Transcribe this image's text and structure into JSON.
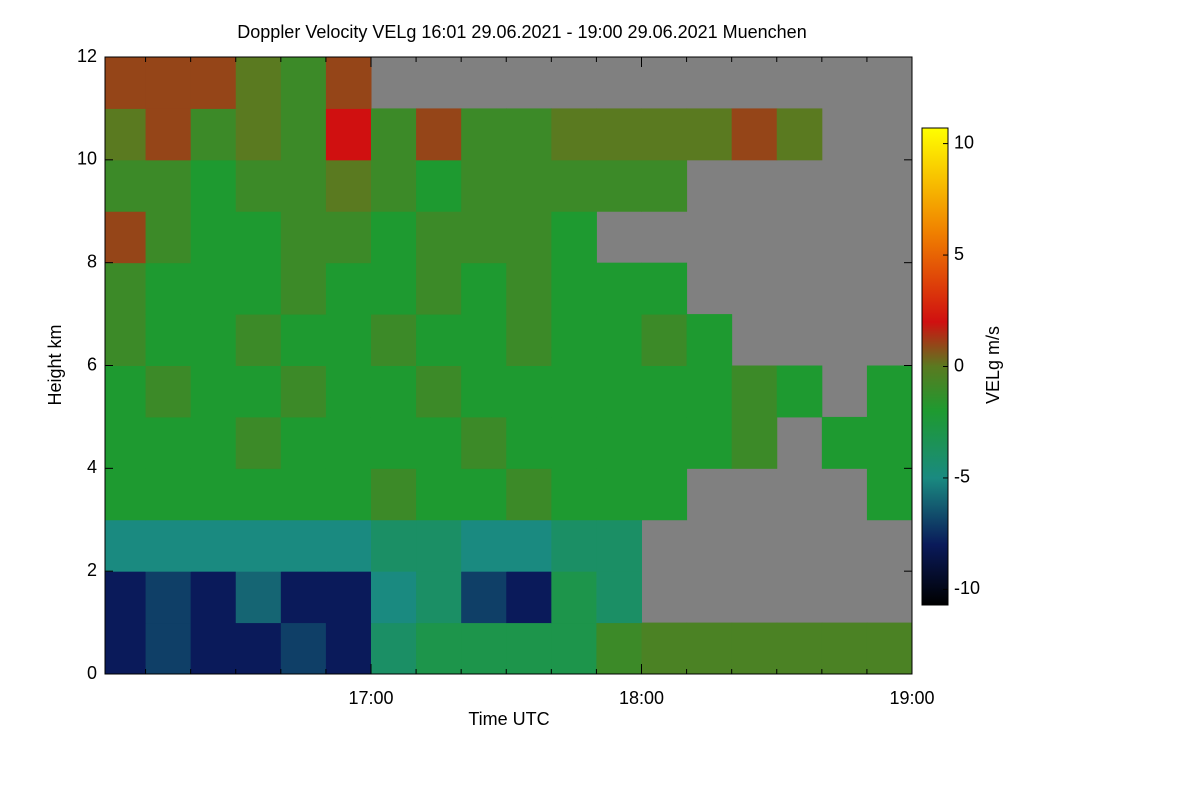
{
  "chart_data": {
    "type": "heatmap",
    "title": "Doppler Velocity VELg   16:01 29.06.2021 - 19:00 29.06.2021 Muenchen",
    "x_label": "Time UTC",
    "y_label": "Height km",
    "colorbar_label": "VELg m/s",
    "xlim": [
      961,
      1140
    ],
    "xticks": [
      {
        "value": 1020,
        "label": "17:00"
      },
      {
        "value": 1080,
        "label": "18:00"
      },
      {
        "value": 1140,
        "label": "19:00"
      }
    ],
    "xminorticks": [
      970,
      980,
      990,
      1000,
      1010,
      1030,
      1040,
      1050,
      1060,
      1070,
      1090,
      1100,
      1110,
      1120,
      1130
    ],
    "ylim": [
      0,
      12
    ],
    "yticks": [
      0,
      2,
      4,
      6,
      8,
      10,
      12
    ],
    "zlim": [
      -10.7,
      10.7
    ],
    "zticks": [
      -10,
      -5,
      0,
      5,
      10
    ],
    "missing_color": "#808080",
    "colormap": [
      {
        "value": -10.7,
        "color": "#000000"
      },
      {
        "value": -8,
        "color": "#0a1a5a"
      },
      {
        "value": -5,
        "color": "#1a8a80"
      },
      {
        "value": -2,
        "color": "#1e9a30"
      },
      {
        "value": 0,
        "color": "#5a7a20"
      },
      {
        "value": 2,
        "color": "#d01010"
      },
      {
        "value": 6,
        "color": "#f08000"
      },
      {
        "value": 10.7,
        "color": "#ffff00"
      }
    ],
    "xbins": [
      961,
      970,
      980,
      990,
      1000,
      1010,
      1020,
      1030,
      1040,
      1050,
      1060,
      1070,
      1080,
      1090,
      1100,
      1110,
      1120,
      1130,
      1140
    ],
    "ybins": [
      0,
      1,
      2,
      3,
      4,
      5,
      6,
      7,
      8,
      9,
      10,
      11,
      12
    ],
    "values": [
      [
        -8,
        -7,
        -8,
        -8,
        -7,
        -8,
        -4,
        -3,
        -3,
        -3,
        -3,
        -1,
        -0.5,
        -0.5,
        -0.5,
        -0.5,
        -0.5,
        -0.5
      ],
      [
        -8,
        -7,
        -8,
        -6,
        -8,
        -8,
        -5,
        -4,
        -7,
        -8,
        -3,
        -4,
        null,
        null,
        null,
        null,
        null,
        null
      ],
      [
        -5,
        -5,
        -5,
        -5,
        -5,
        -5,
        -4,
        -4,
        -5,
        -5,
        -4,
        -4,
        null,
        null,
        null,
        null,
        null,
        null
      ],
      [
        -2,
        -2,
        -2,
        -2,
        -2,
        -2,
        -1,
        -2,
        -2,
        -1,
        -2,
        -2,
        -2,
        null,
        null,
        null,
        null,
        -2
      ],
      [
        -2,
        -2,
        -2,
        -1,
        -2,
        -2,
        -2,
        -2,
        -1,
        -2,
        -2,
        -2,
        -2,
        -2,
        -1,
        null,
        -2,
        -2
      ],
      [
        -2,
        -1,
        -2,
        -2,
        -1,
        -2,
        -2,
        -1,
        -2,
        -2,
        -2,
        -2,
        -2,
        -2,
        -1,
        -2,
        null,
        -2
      ],
      [
        -1,
        -2,
        -2,
        -1,
        -2,
        -2,
        -1,
        -2,
        -2,
        -1,
        -2,
        -2,
        -1,
        -2,
        null,
        null,
        null,
        null
      ],
      [
        -1,
        -2,
        -2,
        -2,
        -1,
        -2,
        -2,
        -1,
        -2,
        -1,
        -2,
        -2,
        -2,
        null,
        null,
        null,
        null,
        null
      ],
      [
        1,
        -1,
        -2,
        -2,
        -1,
        -1,
        -2,
        -1,
        -1,
        -1,
        -2,
        null,
        null,
        null,
        null,
        null,
        null,
        null
      ],
      [
        -1,
        -1,
        -2,
        -1,
        -1,
        0,
        -1,
        -2,
        -1,
        -1,
        -1,
        -1,
        -1,
        null,
        null,
        null,
        null,
        null
      ],
      [
        0,
        1,
        -1,
        0,
        -1,
        2,
        -1,
        1,
        -1,
        -1,
        0,
        0,
        0,
        0,
        1,
        0,
        null,
        null
      ],
      [
        1,
        1,
        1,
        0,
        -1,
        1,
        null,
        null,
        null,
        null,
        null,
        null,
        null,
        null,
        null,
        null,
        null,
        null
      ]
    ]
  }
}
